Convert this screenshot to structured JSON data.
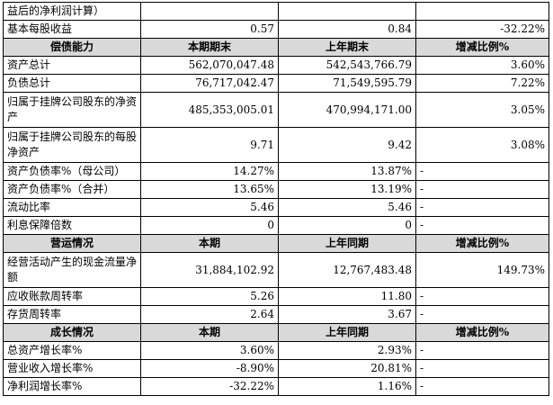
{
  "rows": [
    {
      "type": "data",
      "tall": false,
      "label": "益后的净利润计算）",
      "c1": "",
      "c2": "",
      "c3": ""
    },
    {
      "type": "data",
      "tall": false,
      "label": "基本每股收益",
      "c1": "0.57",
      "c2": "0.84",
      "c3": "-32.22%"
    },
    {
      "type": "section",
      "label": "偿债能力",
      "c1": "本期期末",
      "c2": "上年期末",
      "c3": "增减比例%"
    },
    {
      "type": "data",
      "tall": false,
      "label": "资产总计",
      "c1": "562,070,047.48",
      "c2": "542,543,766.79",
      "c3": "3.60%"
    },
    {
      "type": "data",
      "tall": false,
      "label": "负债总计",
      "c1": "76,717,042.47",
      "c2": "71,549,595.79",
      "c3": "7.22%"
    },
    {
      "type": "data",
      "tall": true,
      "label": "归属于挂牌公司股东的净资产",
      "c1": "485,353,005.01",
      "c2": "470,994,171.00",
      "c3": "3.05%"
    },
    {
      "type": "data",
      "tall": true,
      "label": "归属于挂牌公司股东的每股净资产",
      "c1": "9.71",
      "c2": "9.42",
      "c3": "3.08%"
    },
    {
      "type": "data",
      "tall": false,
      "label": "资产负债率%（母公司）",
      "c1": "14.27%",
      "c2": "13.87%",
      "c3": "-"
    },
    {
      "type": "data",
      "tall": false,
      "label": "资产负债率%（合并）",
      "c1": "13.65%",
      "c2": "13.19%",
      "c3": "-"
    },
    {
      "type": "data",
      "tall": false,
      "label": "流动比率",
      "c1": "5.46",
      "c2": "5.46",
      "c3": "-"
    },
    {
      "type": "data",
      "tall": false,
      "label": "利息保障倍数",
      "c1": "0",
      "c2": "0",
      "c3": "-"
    },
    {
      "type": "section",
      "label": "营运情况",
      "c1": "本期",
      "c2": "上年同期",
      "c3": "增减比例%"
    },
    {
      "type": "data",
      "tall": true,
      "label": "经营活动产生的现金流量净额",
      "c1": "31,884,102.92",
      "c2": "12,767,483.48",
      "c3": "149.73%"
    },
    {
      "type": "data",
      "tall": false,
      "label": "应收账款周转率",
      "c1": "5.26",
      "c2": "11.80",
      "c3": "-"
    },
    {
      "type": "data",
      "tall": false,
      "label": "存货周转率",
      "c1": "2.64",
      "c2": "3.67",
      "c3": "-"
    },
    {
      "type": "section",
      "label": "成长情况",
      "c1": "本期",
      "c2": "上年同期",
      "c3": "增减比例%"
    },
    {
      "type": "data",
      "tall": false,
      "label": "总资产增长率%",
      "c1": "3.60%",
      "c2": "2.93%",
      "c3": "-"
    },
    {
      "type": "data",
      "tall": false,
      "label": "营业收入增长率%",
      "c1": "-8.90%",
      "c2": "20.81%",
      "c3": "-"
    },
    {
      "type": "data",
      "tall": false,
      "label": "净利润增长率%",
      "c1": "-32.22%",
      "c2": "1.16%",
      "c3": "-"
    }
  ]
}
